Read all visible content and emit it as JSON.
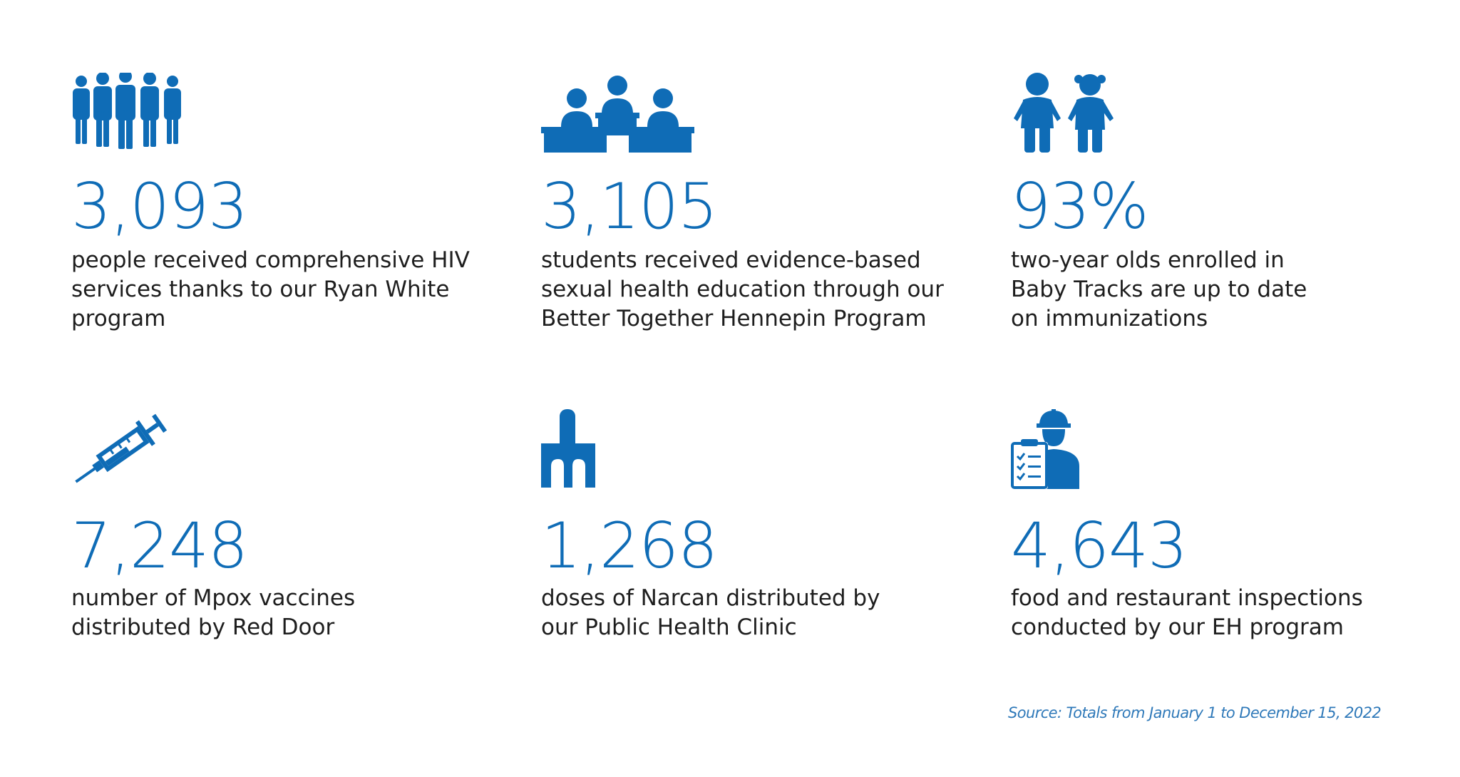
{
  "colors": {
    "accent": "#0f6cb6",
    "text": "#1e1e1e",
    "source": "#2f79b9",
    "background": "#ffffff"
  },
  "stats": [
    {
      "icon": "people-group-icon",
      "value": "3,093",
      "lines": [
        "people received comprehensive HIV",
        "services thanks to our Ryan White",
        "program"
      ]
    },
    {
      "icon": "students-at-desks-icon",
      "value": "3,105",
      "lines": [
        "students received evidence-based",
        "sexual health education through our",
        "Better Together Hennepin Program"
      ]
    },
    {
      "icon": "two-children-icon",
      "value": "93%",
      "lines": [
        "two-year olds enrolled in",
        "Baby Tracks are up to date",
        "on immunizations"
      ]
    },
    {
      "icon": "syringe-icon",
      "value": "7,248",
      "lines": [
        "number of Mpox vaccines",
        "distributed by Red Door"
      ]
    },
    {
      "icon": "nasal-spray-icon",
      "value": "1,268",
      "lines": [
        "doses of Narcan distributed by",
        "our Public Health Clinic"
      ]
    },
    {
      "icon": "inspector-with-clipboard-icon",
      "value": "4,643",
      "lines": [
        "food and restaurant inspections",
        "conducted by our EH program"
      ]
    }
  ],
  "source": "Source: Totals from January 1 to December 15, 2022"
}
